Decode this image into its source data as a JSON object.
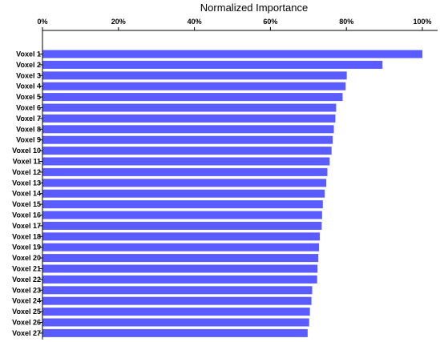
{
  "chart_data": {
    "type": "bar",
    "orientation": "horizontal",
    "title": "Normalized Importance",
    "xlabel": "Normalized Importance",
    "ylabel": "",
    "xlim": [
      0,
      100
    ],
    "x_ticks": [
      0,
      20,
      40,
      60,
      80,
      100
    ],
    "x_tick_labels": [
      "0%",
      "20%",
      "40%",
      "60%",
      "80%",
      "100%"
    ],
    "x_axis_position": "top",
    "grid": false,
    "legend": "none",
    "bar_color": "#5a5cff",
    "categories": [
      "Voxel 1",
      "Voxel 2",
      "Voxel 3",
      "Voxel 4",
      "Voxel 5",
      "Voxel 6",
      "Voxel 7",
      "Voxel 8",
      "Voxel 9",
      "Voxel 10",
      "Voxel 11",
      "Voxel 12",
      "Voxel 13",
      "Voxel 14",
      "Voxel 15",
      "Voxel 16",
      "Voxel 17",
      "Voxel 18",
      "Voxel 19",
      "Voxel 20",
      "Voxel 21",
      "Voxel 22",
      "Voxel 23",
      "Voxel 24",
      "Voxel 25",
      "Voxel 26",
      "Voxel 27"
    ],
    "values": [
      100,
      89.5,
      80.1,
      79.8,
      79.0,
      77.3,
      77.1,
      76.7,
      76.4,
      76.1,
      75.6,
      75.0,
      74.7,
      74.3,
      73.8,
      73.6,
      73.5,
      73.0,
      72.8,
      72.6,
      72.4,
      72.3,
      71.0,
      70.8,
      70.4,
      70.2,
      69.8
    ]
  }
}
